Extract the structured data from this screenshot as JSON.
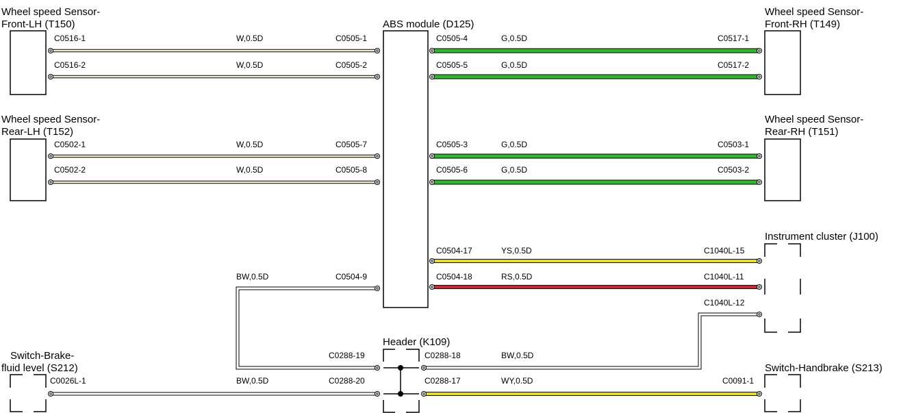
{
  "components": {
    "wss_front_lh": {
      "line1": "Wheel speed Sensor-",
      "line2": "Front-LH (T150)"
    },
    "wss_rear_lh": {
      "line1": "Wheel speed Sensor-",
      "line2": "Rear-LH (T152)"
    },
    "abs_module": {
      "line1": "ABS module (D125)"
    },
    "wss_front_rh": {
      "line1": "Wheel speed Sensor-",
      "line2": "Front-RH (T149)"
    },
    "wss_rear_rh": {
      "line1": "Wheel speed Sensor-",
      "line2": "Rear-RH (T151)"
    },
    "instrument_cluster": {
      "line1": "Instrument cluster (J100)"
    },
    "header": {
      "line1": "Header (K109)"
    },
    "switch_brake_fluid": {
      "line1": "Switch-Brake-",
      "line2": "fluid level (S212)"
    },
    "switch_handbrake": {
      "line1": "Switch-Handbrake (S213)"
    }
  },
  "wires": [
    {
      "id": "w1",
      "from": "C0516-1",
      "spec": "W,0.5D",
      "to": "C0505-1",
      "color": "#f4f0d0"
    },
    {
      "id": "w2",
      "from": "C0516-2",
      "spec": "W,0.5D",
      "to": "C0505-2",
      "color": "#f4f0d0"
    },
    {
      "id": "w3",
      "from": "C0502-1",
      "spec": "W,0.5D",
      "to": "C0505-7",
      "color": "#f4f0d0"
    },
    {
      "id": "w4",
      "from": "C0502-2",
      "spec": "W,0.5D",
      "to": "C0505-8",
      "color": "#f4f0d0"
    },
    {
      "id": "w5",
      "from": "C0505-4",
      "spec": "G,0.5D",
      "to": "C0517-1",
      "color": "#2eb82e"
    },
    {
      "id": "w6",
      "from": "C0505-5",
      "spec": "G,0.5D",
      "to": "C0517-2",
      "color": "#2eb82e"
    },
    {
      "id": "w7",
      "from": "C0505-3",
      "spec": "G,0.5D",
      "to": "C0503-1",
      "color": "#2eb82e"
    },
    {
      "id": "w8",
      "from": "C0505-6",
      "spec": "G,0.5D",
      "to": "C0503-2",
      "color": "#2eb82e"
    },
    {
      "id": "w9",
      "from": "C0504-17",
      "spec": "YS,0.5D",
      "to": "C1040L-15",
      "color": "#f0e000"
    },
    {
      "id": "w10",
      "from": "C0504-18",
      "spec": "RS,0.5D",
      "to": "C1040L-11",
      "color": "#e02020"
    },
    {
      "id": "w11",
      "from": "C0504-9",
      "spec": "BW,0.5D",
      "to": "C0288-19",
      "color": "#ffffff"
    },
    {
      "id": "w12",
      "from": "C0288-18",
      "spec": "BW,0.5D",
      "to": "C1040L-12",
      "color": "#ffffff"
    },
    {
      "id": "w13",
      "from": "C0026L-1",
      "spec": "BW,0.5D",
      "to": "C0288-20",
      "color": "#ffffff"
    },
    {
      "id": "w14",
      "from": "C0288-17",
      "spec": "WY,0.5D",
      "to": "C0091-1",
      "color": "#f0e000"
    }
  ]
}
